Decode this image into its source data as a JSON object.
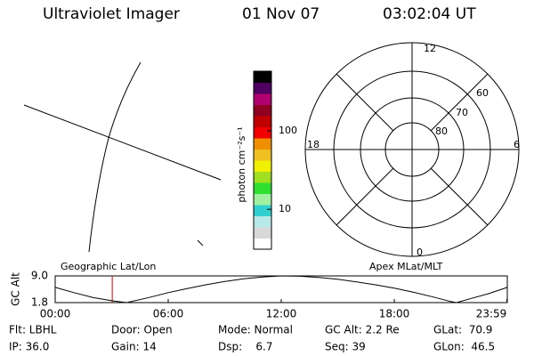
{
  "header": {
    "title": "Ultraviolet Imager",
    "date": "01 Nov 07",
    "time": "03:02:04 UT"
  },
  "map_labels": {
    "left": "Geographic Lat/Lon",
    "right": "Apex MLat/MLT"
  },
  "polar": {
    "mlt_labels": [
      "12",
      "18",
      "6",
      "0"
    ],
    "lat_labels": [
      "60",
      "70",
      "80"
    ]
  },
  "chart_data": [
    {
      "type": "colorbar",
      "label": "photon cm⁻²s⁻¹",
      "log_scale": true,
      "ylim": [
        3.1,
        575
      ],
      "yticks": [
        10,
        100
      ],
      "colors": [
        "#ffffff",
        "#d8d8d8",
        "#b8e8e8",
        "#30d0d0",
        "#a0f0a0",
        "#30e030",
        "#a0e020",
        "#f0f000",
        "#f0c020",
        "#f09000",
        "#f00000",
        "#c00000",
        "#900020",
        "#b00070",
        "#500060",
        "#000000"
      ]
    },
    {
      "type": "line",
      "ylabel": "GC Alt",
      "color": "#000000",
      "marker_color": "#e00000",
      "marker_x": 3.03,
      "x": [
        0,
        1,
        2,
        3,
        3.8,
        5,
        6,
        7,
        8,
        9,
        10,
        11,
        12,
        13,
        14,
        15,
        16,
        17,
        18,
        19,
        20,
        21,
        21.3,
        22,
        23,
        24
      ],
      "values": [
        5.9,
        4.5,
        3.2,
        2.3,
        1.8,
        3.2,
        4.5,
        5.6,
        6.6,
        7.5,
        8.2,
        8.7,
        9.0,
        8.9,
        8.6,
        8.1,
        7.4,
        6.6,
        5.7,
        4.6,
        3.4,
        2.1,
        1.8,
        2.8,
        4.2,
        5.9
      ],
      "xlim": [
        0,
        24
      ],
      "ylim": [
        1.8,
        9.0
      ],
      "xticks": [
        {
          "value": 0,
          "label": "00:00"
        },
        {
          "value": 6,
          "label": "06:00"
        },
        {
          "value": 12,
          "label": "12:00"
        },
        {
          "value": 18,
          "label": "18:00"
        },
        {
          "value": 23.98,
          "label": "23:59"
        }
      ],
      "yticks": [
        {
          "value": 9.0,
          "label": "9.0"
        },
        1.8
      ]
    }
  ],
  "footer": {
    "rows": [
      [
        "Flt: LBHL",
        "Door: Open",
        "Mode: Normal",
        "GC Alt: 2.2 Re",
        "GLat:  70.9"
      ],
      [
        "IP: 36.0",
        "Gain: 14",
        "Dsp:    6.7",
        "Seq: 39",
        "GLon:  46.5"
      ]
    ]
  }
}
